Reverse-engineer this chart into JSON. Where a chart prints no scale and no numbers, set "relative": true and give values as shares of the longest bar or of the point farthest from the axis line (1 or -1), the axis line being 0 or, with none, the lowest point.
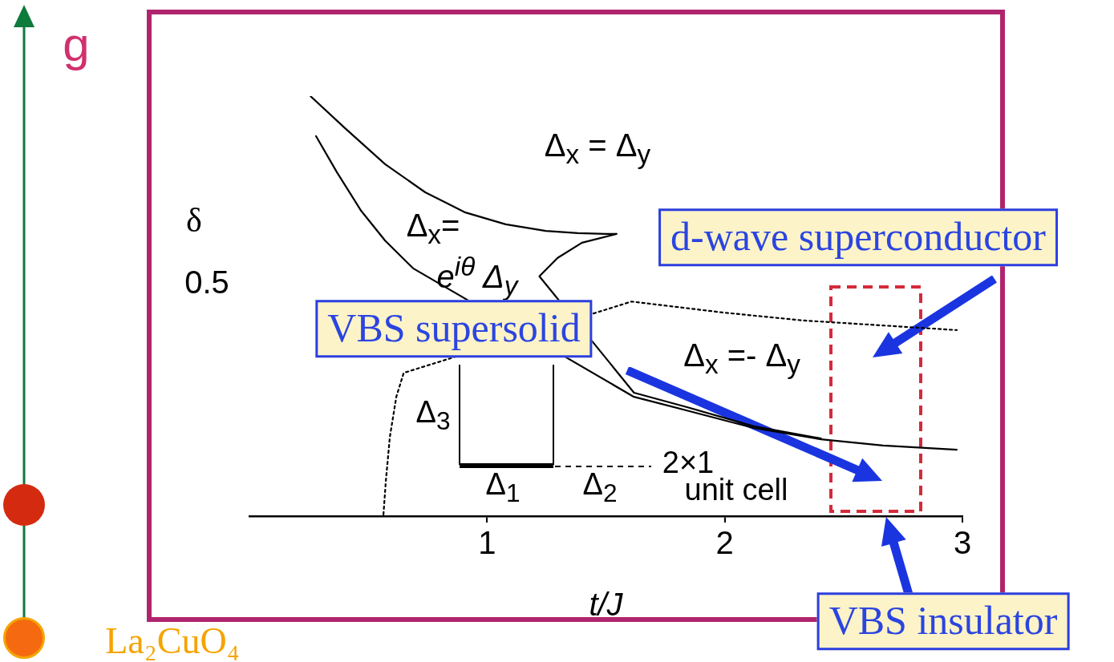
{
  "chart_data": {
    "type": "line",
    "relative": true,
    "xlabel": "t/J",
    "ylabel": "δ",
    "xlim": [
      0,
      3
    ],
    "xticks": [
      1,
      2,
      3
    ],
    "marker": "none",
    "legend": false,
    "series": [
      {
        "color": "#000000",
        "line_style": "solid",
        "x": [
          0.257,
          0.402,
          0.571,
          0.74,
          0.909,
          1.078,
          1.247,
          1.382,
          1.5,
          1.544
        ],
        "values": [
          1.0,
          0.924,
          0.838,
          0.771,
          0.723,
          0.695,
          0.679,
          0.674,
          0.672,
          0.672
        ]
      },
      {
        "color": "#000000",
        "line_style": "solid",
        "x": [
          0.28,
          0.368,
          0.47,
          0.571,
          0.689,
          1.618,
          1.838,
          2.122,
          2.405,
          2.666,
          2.976
        ],
        "values": [
          0.905,
          0.819,
          0.727,
          0.656,
          0.59,
          0.284,
          0.252,
          0.21,
          0.183,
          0.168,
          0.158
        ]
      },
      {
        "color": "#000000",
        "line_style": "solid",
        "x": [
          1.544,
          1.399,
          1.297,
          1.22,
          1.618,
          1.838,
          2.122,
          2.405
        ],
        "values": [
          0.672,
          0.651,
          0.615,
          0.571,
          0.294,
          0.26,
          0.214,
          0.185
        ]
      },
      {
        "color": "#000000",
        "line_style": "dotted",
        "x": [
          0.564,
          0.574,
          0.591,
          0.618,
          0.649,
          1.608,
          1.99,
          2.328,
          2.666,
          2.976
        ],
        "values": [
          0.004,
          0.084,
          0.189,
          0.284,
          0.341,
          0.511,
          0.485,
          0.466,
          0.454,
          0.443
        ]
      }
    ],
    "annotations": [
      "Δ$_{x}$ = Δ$_{y}$",
      "Δ$_{x}$=",
      "e$^{iθ}$ Δ$_{y}$",
      "Δ$_{x}$ =- Δ$_{y}$",
      "0.5",
      "Δ$_{3}$",
      "Δ$_{1}$",
      "Δ$_{2}$",
      "2×1",
      "unit  cell",
      "d-wave superconductor",
      "VBS supersolid",
      "VBS insulator",
      "g",
      "La₂CuO₄"
    ]
  }
}
